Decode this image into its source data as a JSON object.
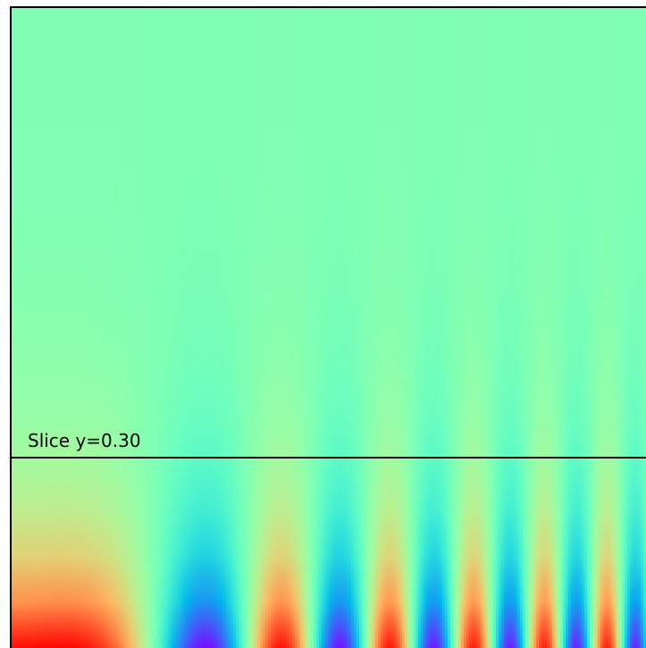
{
  "chart_data": {
    "type": "heatmap",
    "annotation": "Slice y=0.30",
    "colormap": "rainbow"
  }
}
